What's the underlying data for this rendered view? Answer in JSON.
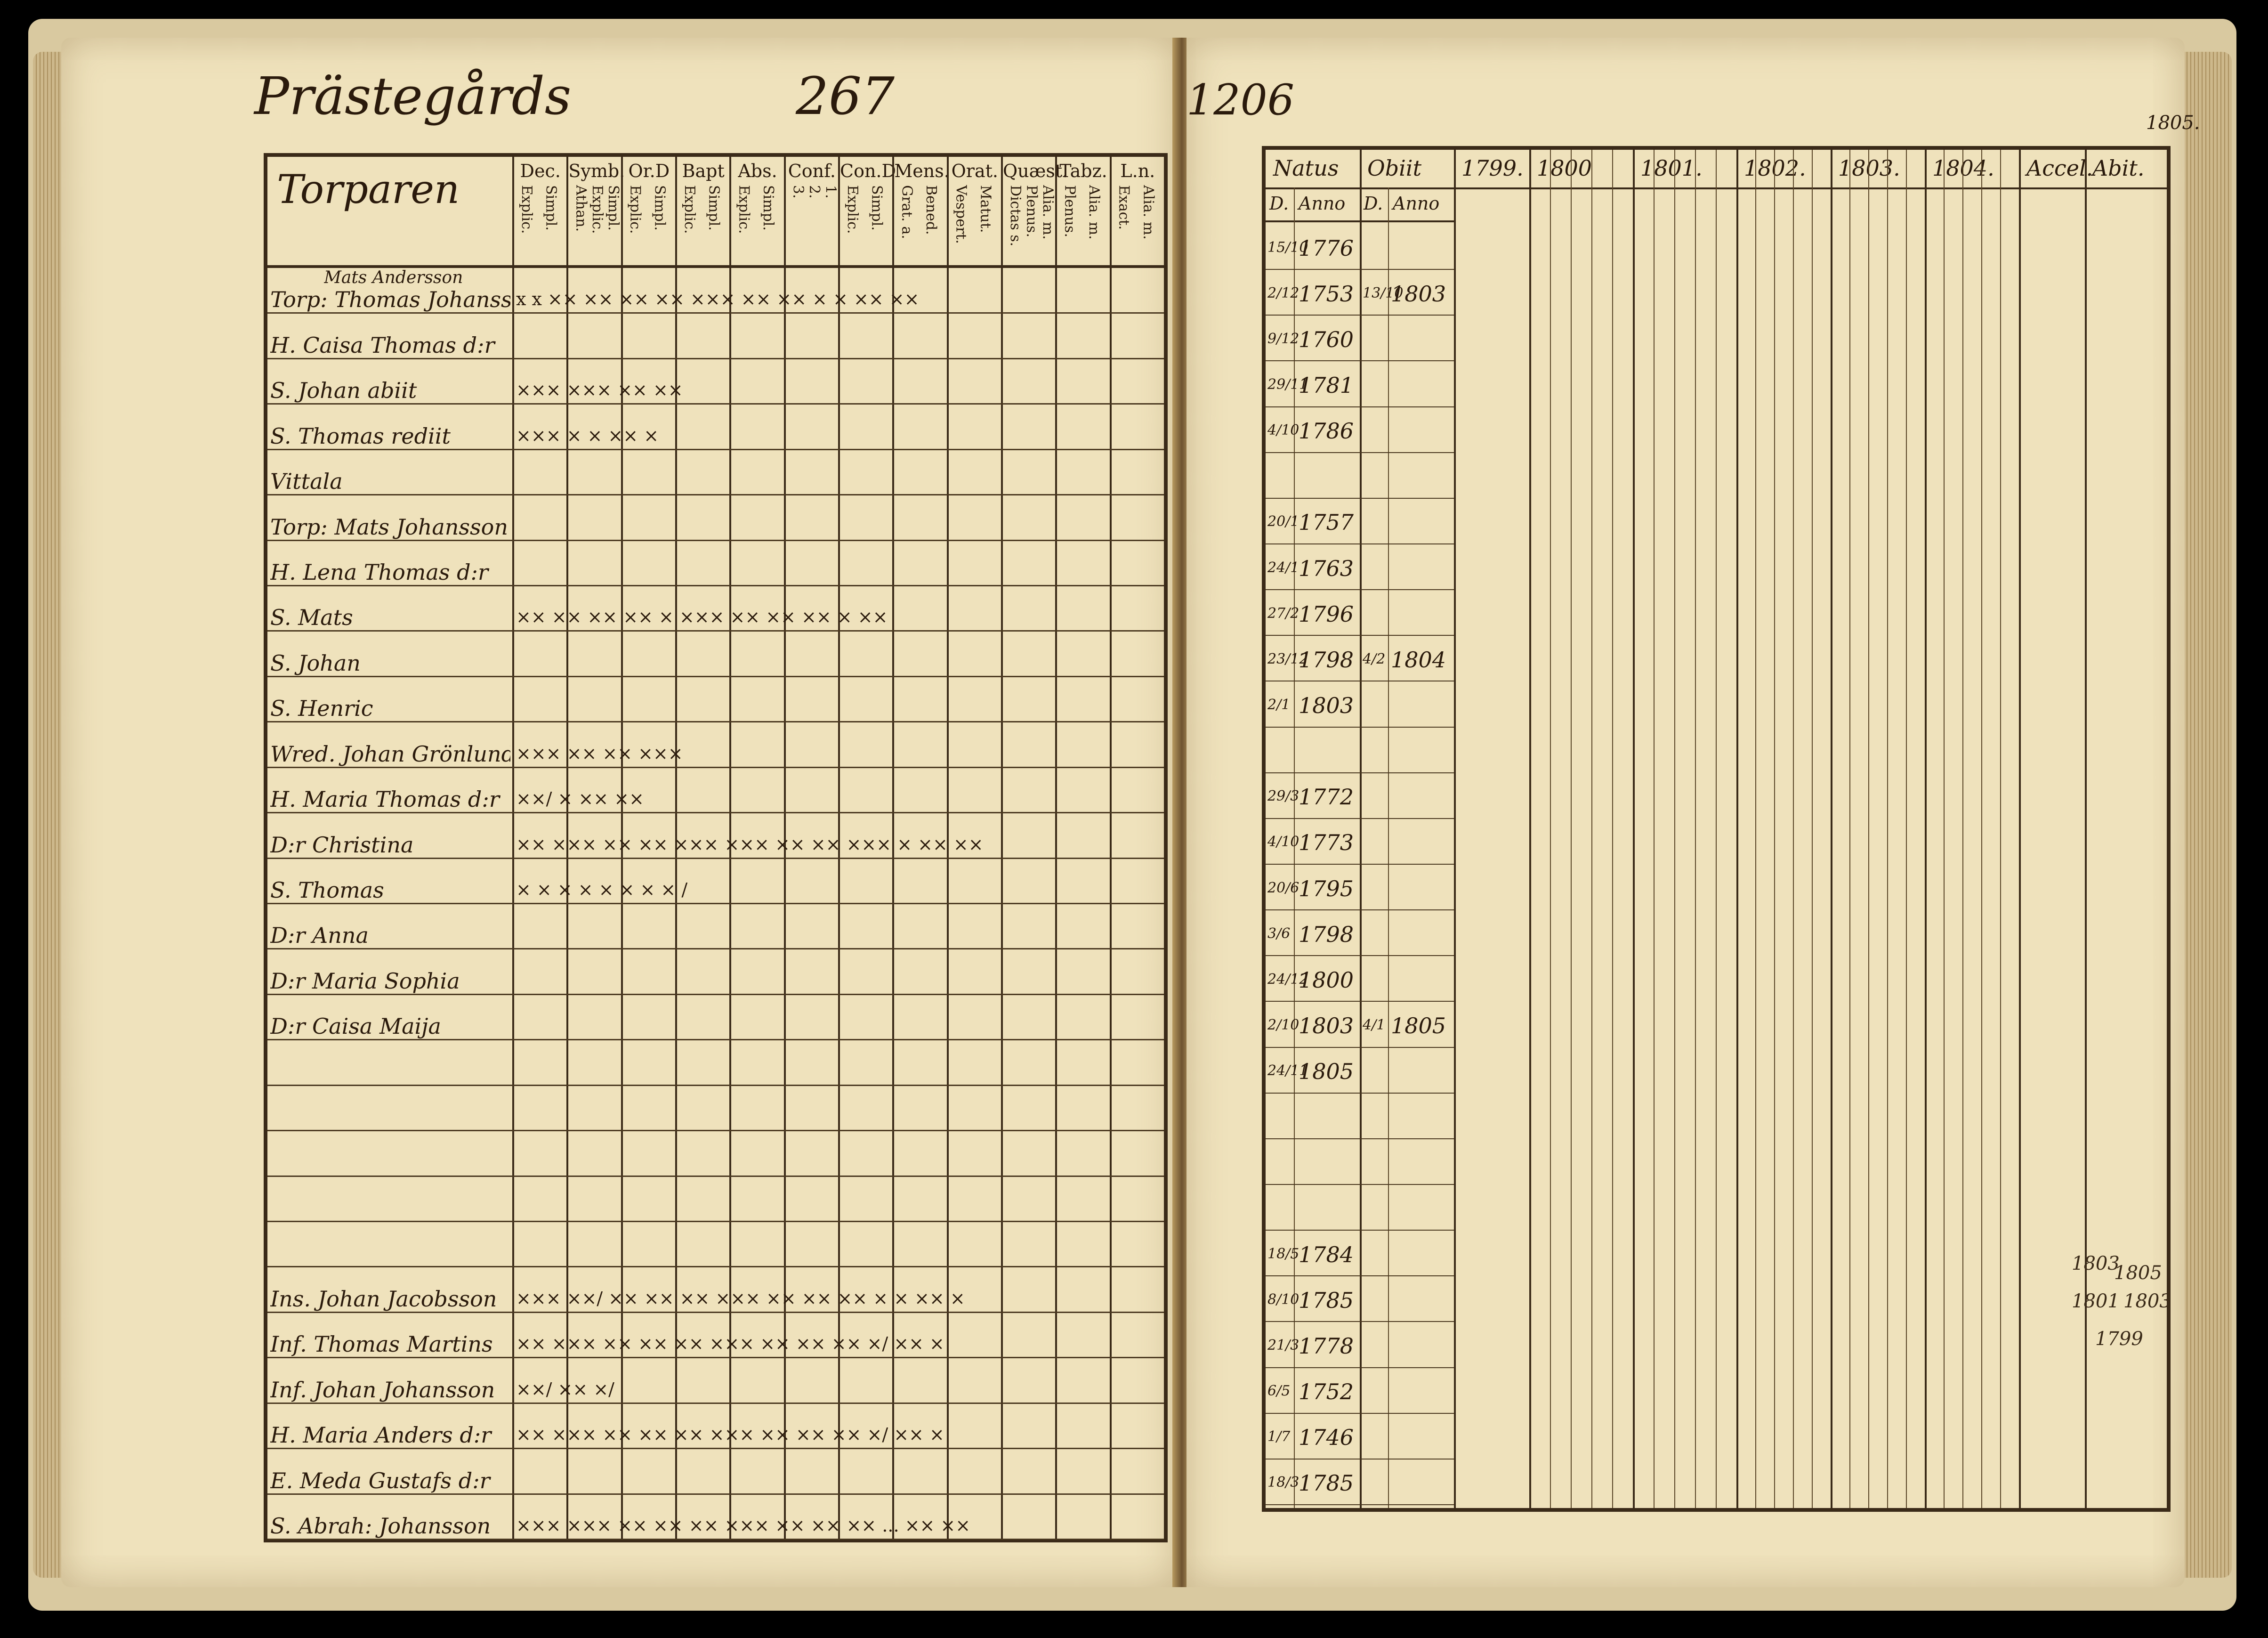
{
  "left_page": {
    "title": "Prästegårds",
    "page_number": "267",
    "section_heading": "Torparen",
    "columns": [
      {
        "label": "Dec.",
        "sub": [
          "Explic.",
          "Simpl."
        ]
      },
      {
        "label": "Symb.",
        "sub": [
          "Athan.",
          "Explic.",
          "Simpl."
        ]
      },
      {
        "label": "Or.D",
        "sub": [
          "Explic.",
          "Simpl."
        ]
      },
      {
        "label": "Bapt",
        "sub": [
          "Explic.",
          "Simpl."
        ]
      },
      {
        "label": "Abs.",
        "sub": [
          "Explic.",
          "Simpl."
        ]
      },
      {
        "label": "Conf.",
        "sub": [
          "3.",
          "2.",
          "1."
        ]
      },
      {
        "label": "Con.D",
        "sub": [
          "Explic.",
          "Simpl."
        ]
      },
      {
        "label": "Mens.",
        "sub": [
          "Grat. a.",
          "Bened."
        ]
      },
      {
        "label": "Orat.",
        "sub": [
          "Vespert.",
          "Matut."
        ]
      },
      {
        "label": "Quæst.",
        "sub": [
          "Dictas s.",
          "Plenus.",
          "Alia. m."
        ]
      },
      {
        "label": "Tabz.",
        "sub": [
          "Plenus.",
          "Alia. m."
        ]
      },
      {
        "label": "L.n.",
        "sub": [
          "Exact.",
          "Alia. m."
        ]
      }
    ],
    "rows": [
      {
        "name": "Torp: Thomas Johansson",
        "note": "Mats Andersson",
        "marks": "x x  ×× ×× ×× ×× ××× ×× ×× × ×   ×× ×× "
      },
      {
        "name": "H. Caisa Thomas d:r",
        "marks": ""
      },
      {
        "name": "S. Johan abiit",
        "marks": "×××                         ××× ×× ××"
      },
      {
        "name": "S. Thomas rediit",
        "marks": "×××                         × × ×× ×"
      },
      {
        "name": "Vittala",
        "marks": ""
      },
      {
        "name": "Torp: Mats Johansson",
        "marks": ""
      },
      {
        "name": "H. Lena Thomas d:r",
        "marks": ""
      },
      {
        "name": "S. Mats",
        "marks": "×× ×× ×× ×× × ××× ×× ×× ×× ×  ×× "
      },
      {
        "name": "S. Johan",
        "marks": ""
      },
      {
        "name": "S. Henric",
        "marks": ""
      },
      {
        "name": "Wred. Johan Grönlund",
        "marks": "×××                         ××  ×× ×××"
      },
      {
        "name": "H. Maria Thomas d:r",
        "marks": "××/                         ×   ×× ××"
      },
      {
        "name": "D:r Christina",
        "marks": "×× ××× ×× ×× ××× ××× ×× ×× ××× × ×× ××"
      },
      {
        "name": "S. Thomas",
        "marks": "×   ×   ×  ×   ×   ×   ×  ×      /"
      },
      {
        "name": "D:r Anna",
        "marks": ""
      },
      {
        "name": "D:r Maria Sophia",
        "marks": ""
      },
      {
        "name": "D:r Caisa Maija",
        "marks": ""
      },
      {
        "name": "",
        "marks": ""
      },
      {
        "name": "",
        "marks": ""
      },
      {
        "name": "",
        "marks": ""
      },
      {
        "name": "",
        "marks": ""
      },
      {
        "name": "",
        "marks": ""
      },
      {
        "name": "Ins. Johan Jacobsson",
        "marks": "××× ××/ ×× ×× ×× ××× ×× ×× ×× × × ×× ×"
      },
      {
        "name": "Inf. Thomas Martins",
        "marks": "×× ××× ×× ×× ×× ××× ×× ×× ×× ×/ ×× ×"
      },
      {
        "name": "Inf. Johan Johansson",
        "marks": "                             ××/ ×× ×/"
      },
      {
        "name": "H. Maria Anders d:r",
        "marks": "×× ××× ×× ×× ×× ××× ×× ×× ×× ×/ ×× ×"
      },
      {
        "name": "E. Meda Gustafs d:r",
        "marks": ""
      },
      {
        "name": "S. Abrah: Johansson",
        "marks": "××× ××× ×× ×× ×× ××× ×× ×× ×× ... ×× ××"
      }
    ]
  },
  "right_page": {
    "page_number": "1206",
    "headers": [
      "Natus",
      "Obiit",
      "1799.",
      "1800",
      "1801.",
      "1802.",
      "1803.",
      "1804.",
      "Accel.",
      "Abit.",
      "1805."
    ],
    "subheaders": [
      "D.",
      "Anno",
      "D.",
      "Anno"
    ],
    "rows": [
      {
        "natus_d": "15/10",
        "natus_anno": "1776",
        "obiit_d": "",
        "obiit_anno": ""
      },
      {
        "natus_d": "2/12",
        "natus_anno": "1753",
        "obiit_d": "13/10",
        "obiit_anno": "1803"
      },
      {
        "natus_d": "9/12",
        "natus_anno": "1760",
        "obiit_d": "",
        "obiit_anno": ""
      },
      {
        "natus_d": "29/11",
        "natus_anno": "1781",
        "obiit_d": "",
        "obiit_anno": ""
      },
      {
        "natus_d": "4/10",
        "natus_anno": "1786",
        "obiit_d": "",
        "obiit_anno": ""
      },
      {
        "natus_d": "",
        "natus_anno": "",
        "obiit_d": "",
        "obiit_anno": ""
      },
      {
        "natus_d": "20/1",
        "natus_anno": "1757",
        "obiit_d": "",
        "obiit_anno": ""
      },
      {
        "natus_d": "24/1",
        "natus_anno": "1763",
        "obiit_d": "",
        "obiit_anno": ""
      },
      {
        "natus_d": "27/2",
        "natus_anno": "1796",
        "obiit_d": "",
        "obiit_anno": ""
      },
      {
        "natus_d": "23/12",
        "natus_anno": "1798",
        "obiit_d": "4/2",
        "obiit_anno": "1804"
      },
      {
        "natus_d": "2/1",
        "natus_anno": "1803",
        "obiit_d": "",
        "obiit_anno": ""
      },
      {
        "natus_d": "",
        "natus_anno": "",
        "obiit_d": "",
        "obiit_anno": ""
      },
      {
        "natus_d": "29/3",
        "natus_anno": "1772",
        "obiit_d": "",
        "obiit_anno": ""
      },
      {
        "natus_d": "4/10",
        "natus_anno": "1773",
        "obiit_d": "",
        "obiit_anno": ""
      },
      {
        "natus_d": "20/6",
        "natus_anno": "1795",
        "obiit_d": "",
        "obiit_anno": ""
      },
      {
        "natus_d": "3/6",
        "natus_anno": "1798",
        "obiit_d": "",
        "obiit_anno": ""
      },
      {
        "natus_d": "24/12",
        "natus_anno": "1800",
        "obiit_d": "",
        "obiit_anno": ""
      },
      {
        "natus_d": "2/10",
        "natus_anno": "1803",
        "obiit_d": "4/1",
        "obiit_anno": "1805"
      },
      {
        "natus_d": "24/11",
        "natus_anno": "1805",
        "obiit_d": "",
        "obiit_anno": ""
      },
      {
        "natus_d": "",
        "natus_anno": "",
        "obiit_d": "",
        "obiit_anno": ""
      },
      {
        "natus_d": "",
        "natus_anno": "",
        "obiit_d": "",
        "obiit_anno": ""
      },
      {
        "natus_d": "",
        "natus_anno": "",
        "obiit_d": "",
        "obiit_anno": ""
      },
      {
        "natus_d": "18/5",
        "natus_anno": "1784",
        "obiit_d": "",
        "obiit_anno": ""
      },
      {
        "natus_d": "8/10",
        "natus_anno": "1785",
        "obiit_d": "",
        "obiit_anno": ""
      },
      {
        "natus_d": "21/3",
        "natus_anno": "1778",
        "obiit_d": "",
        "obiit_anno": ""
      },
      {
        "natus_d": "6/5",
        "natus_anno": "1752",
        "obiit_d": "",
        "obiit_anno": ""
      },
      {
        "natus_d": "1/7",
        "natus_anno": "1746",
        "obiit_d": "",
        "obiit_anno": ""
      },
      {
        "natus_d": "18/3",
        "natus_anno": "1785",
        "obiit_d": "",
        "obiit_anno": ""
      }
    ],
    "margin_notes": [
      "1803",
      "1805",
      "1801",
      "1803",
      "1799"
    ]
  }
}
